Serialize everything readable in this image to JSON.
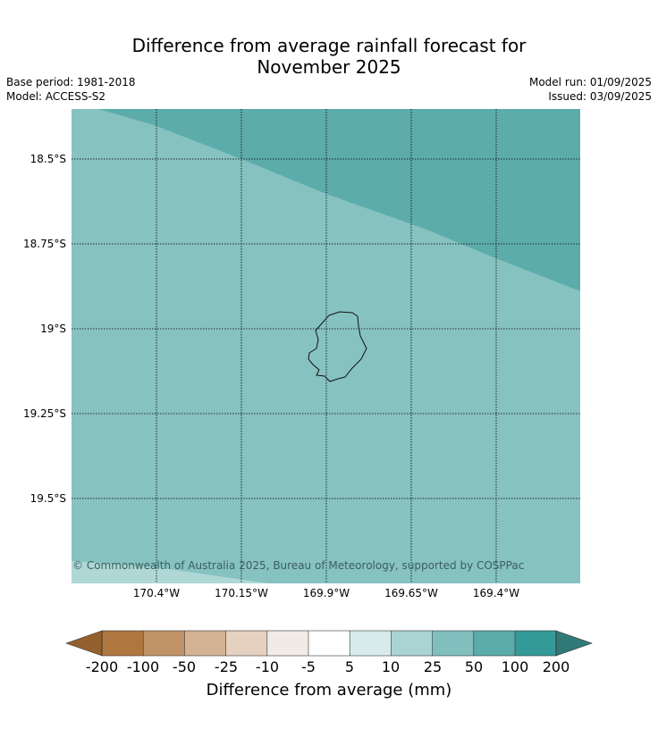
{
  "title": {
    "line1": "Difference from average rainfall forecast for",
    "line2": "November 2025"
  },
  "meta": {
    "base_period": "Base period: 1981-2018",
    "model": "Model: ACCESS-S2",
    "model_run": "Model run: 01/09/2025",
    "issued": "Issued: 03/09/2025"
  },
  "map": {
    "lat_labels": [
      "18.5°S",
      "18.75°S",
      "19°S",
      "19.25°S",
      "19.5°S"
    ],
    "lon_labels": [
      "170.4°W",
      "170.15°W",
      "169.9°W",
      "169.65°W",
      "169.4°W"
    ],
    "copyright": "© Commonwealth of Australia 2025, Bureau of Meteorology, supported by COSPPac",
    "category_colors": {
      "main_region": "#86c2c0",
      "north_region": "#5cacab",
      "southwest_corner": "#aed7d6"
    }
  },
  "colorbar": {
    "label": "Difference from average (mm)",
    "ticks": [
      "-200",
      "-100",
      "-50",
      "-25",
      "-10",
      "-5",
      "5",
      "10",
      "25",
      "50",
      "100",
      "200"
    ],
    "colors": [
      "#94602e",
      "#b07640",
      "#c19268",
      "#d4b394",
      "#e6d1c0",
      "#f0ebe7",
      "#ffffff",
      "#d6ebea",
      "#aad4d4",
      "#81bfbe",
      "#5aabaa",
      "#349a98",
      "#2f7a79"
    ]
  }
}
